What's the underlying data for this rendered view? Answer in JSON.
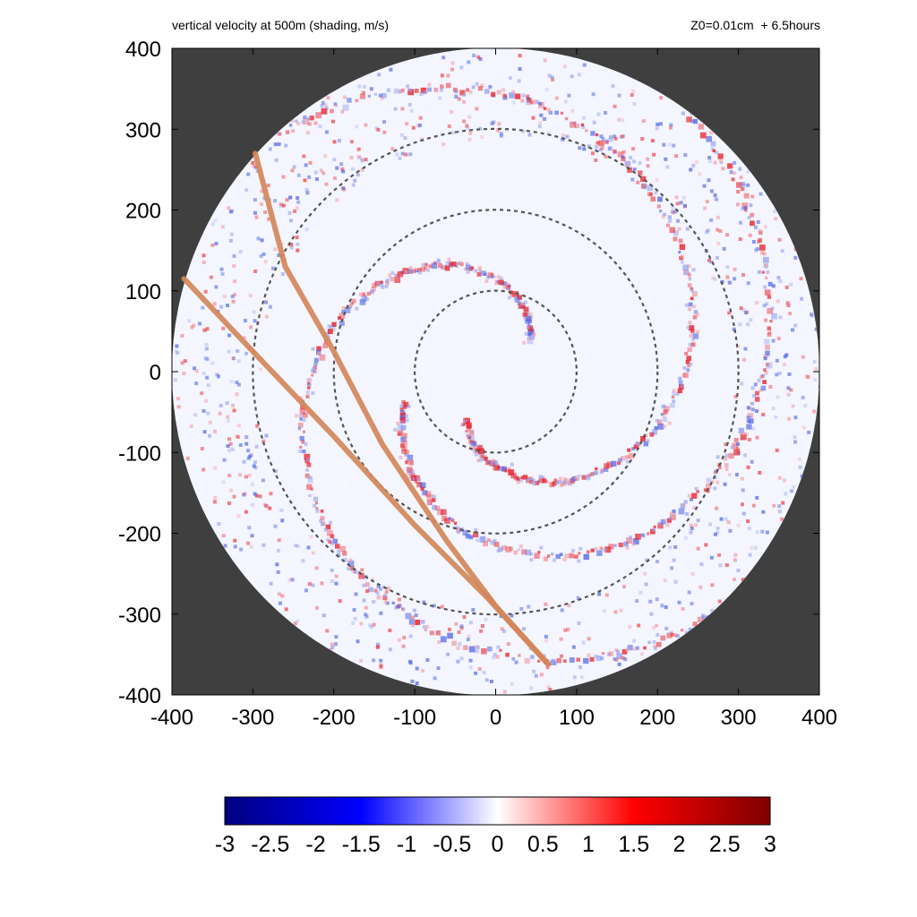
{
  "chart_data": {
    "type": "heatmap",
    "title": "vertical velocity at 500m (shading, m/s)",
    "subtitle": "Z0=0.01cm  + 6.5hours",
    "xlabel": "",
    "ylabel": "",
    "xlim": [
      -400,
      400
    ],
    "ylim": [
      -400,
      400
    ],
    "x_ticks": [
      "-400",
      "-300",
      "-200",
      "-100",
      "0",
      "100",
      "200",
      "300",
      "400"
    ],
    "y_ticks": [
      "400",
      "300",
      "200",
      "100",
      "0",
      "-100",
      "-200",
      "-300",
      "-400"
    ],
    "x_tick_values": [
      -400,
      -300,
      -200,
      -100,
      0,
      100,
      200,
      300,
      400
    ],
    "y_tick_values": [
      400,
      300,
      200,
      100,
      0,
      -100,
      -200,
      -300,
      -400
    ],
    "domain_radius": 400,
    "reference_circles": [
      {
        "radius": 100,
        "style": "dashed"
      },
      {
        "radius": 200,
        "style": "dashed"
      },
      {
        "radius": 300,
        "style": "dashed"
      }
    ],
    "tracks": [
      {
        "color": "#d2875a",
        "points": [
          [
            -297,
            270
          ],
          [
            -260,
            130
          ],
          [
            -200,
            25
          ],
          [
            -140,
            -90
          ],
          [
            -60,
            -210
          ],
          [
            0,
            -290
          ],
          [
            65,
            -362
          ]
        ]
      },
      {
        "color": "#d2875a",
        "points": [
          [
            -385,
            115
          ],
          [
            -300,
            25
          ],
          [
            -200,
            -80
          ],
          [
            -100,
            -190
          ],
          [
            -10,
            -280
          ],
          [
            40,
            -335
          ],
          [
            65,
            -362
          ]
        ]
      }
    ],
    "colorbar": {
      "ticks": [
        "-3",
        "-2.5",
        "-2",
        "-1.5",
        "-1",
        "-0.5",
        "0",
        "0.5",
        "1",
        "1.5",
        "2",
        "2.5",
        "3"
      ],
      "tick_values": [
        -3,
        -2.5,
        -2,
        -1.5,
        -1,
        -0.5,
        0,
        0.5,
        1,
        1.5,
        2,
        2.5,
        3
      ],
      "range": [
        -3,
        3
      ],
      "colors": [
        "#00007f",
        "#0000ff",
        "#ffffff",
        "#ff0000",
        "#7f0000"
      ]
    },
    "background_color": "#3f3f3f",
    "grid": false
  }
}
